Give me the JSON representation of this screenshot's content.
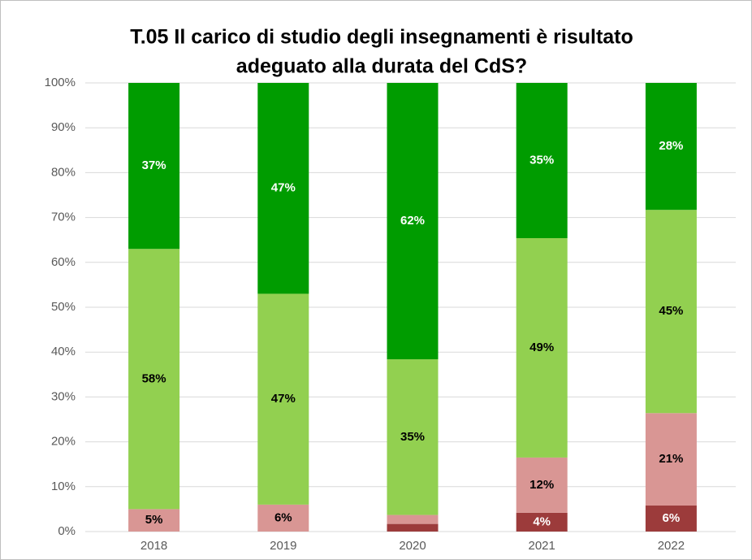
{
  "chart_data": {
    "type": "stacked_bar",
    "title": [
      "T.05 Il carico di studio degli insegnamenti è risultato",
      "adeguato alla durata del CdS?"
    ],
    "categories": [
      "2018",
      "2019",
      "2020",
      "2021",
      "2022"
    ],
    "series": [
      {
        "color": "#9c3b3b",
        "values": [
          0,
          0,
          1.7,
          4.2,
          5.8
        ],
        "value_labels": [
          null,
          null,
          null,
          "4%",
          "6%"
        ],
        "label_color": "#ffffff"
      },
      {
        "color": "#d99694",
        "values": [
          5,
          6,
          2.0,
          12.3,
          20.6
        ],
        "value_labels": [
          "5%",
          "6%",
          null,
          "12%",
          "21%"
        ],
        "label_color": "#000000"
      },
      {
        "color": "#92d050",
        "values": [
          58,
          47,
          34.7,
          48.9,
          45.3
        ],
        "value_labels": [
          "58%",
          "47%",
          "35%",
          "49%",
          "45%"
        ],
        "label_color": "#000000"
      },
      {
        "color": "#009c00",
        "values": [
          37,
          47,
          61.6,
          34.6,
          28.3
        ],
        "value_labels": [
          "37%",
          "47%",
          "62%",
          "35%",
          "28%"
        ],
        "label_color": "#ffffff"
      }
    ],
    "ylim": [
      0,
      100
    ],
    "yticks": [
      {
        "value": 0,
        "label": "0%"
      },
      {
        "value": 10,
        "label": "10%"
      },
      {
        "value": 20,
        "label": "20%"
      },
      {
        "value": 30,
        "label": "30%"
      },
      {
        "value": 40,
        "label": "40%"
      },
      {
        "value": 50,
        "label": "50%"
      },
      {
        "value": 60,
        "label": "60%"
      },
      {
        "value": 70,
        "label": "70%"
      },
      {
        "value": 80,
        "label": "80%"
      },
      {
        "value": 90,
        "label": "90%"
      },
      {
        "value": 100,
        "label": "100%"
      }
    ],
    "grid": true
  }
}
